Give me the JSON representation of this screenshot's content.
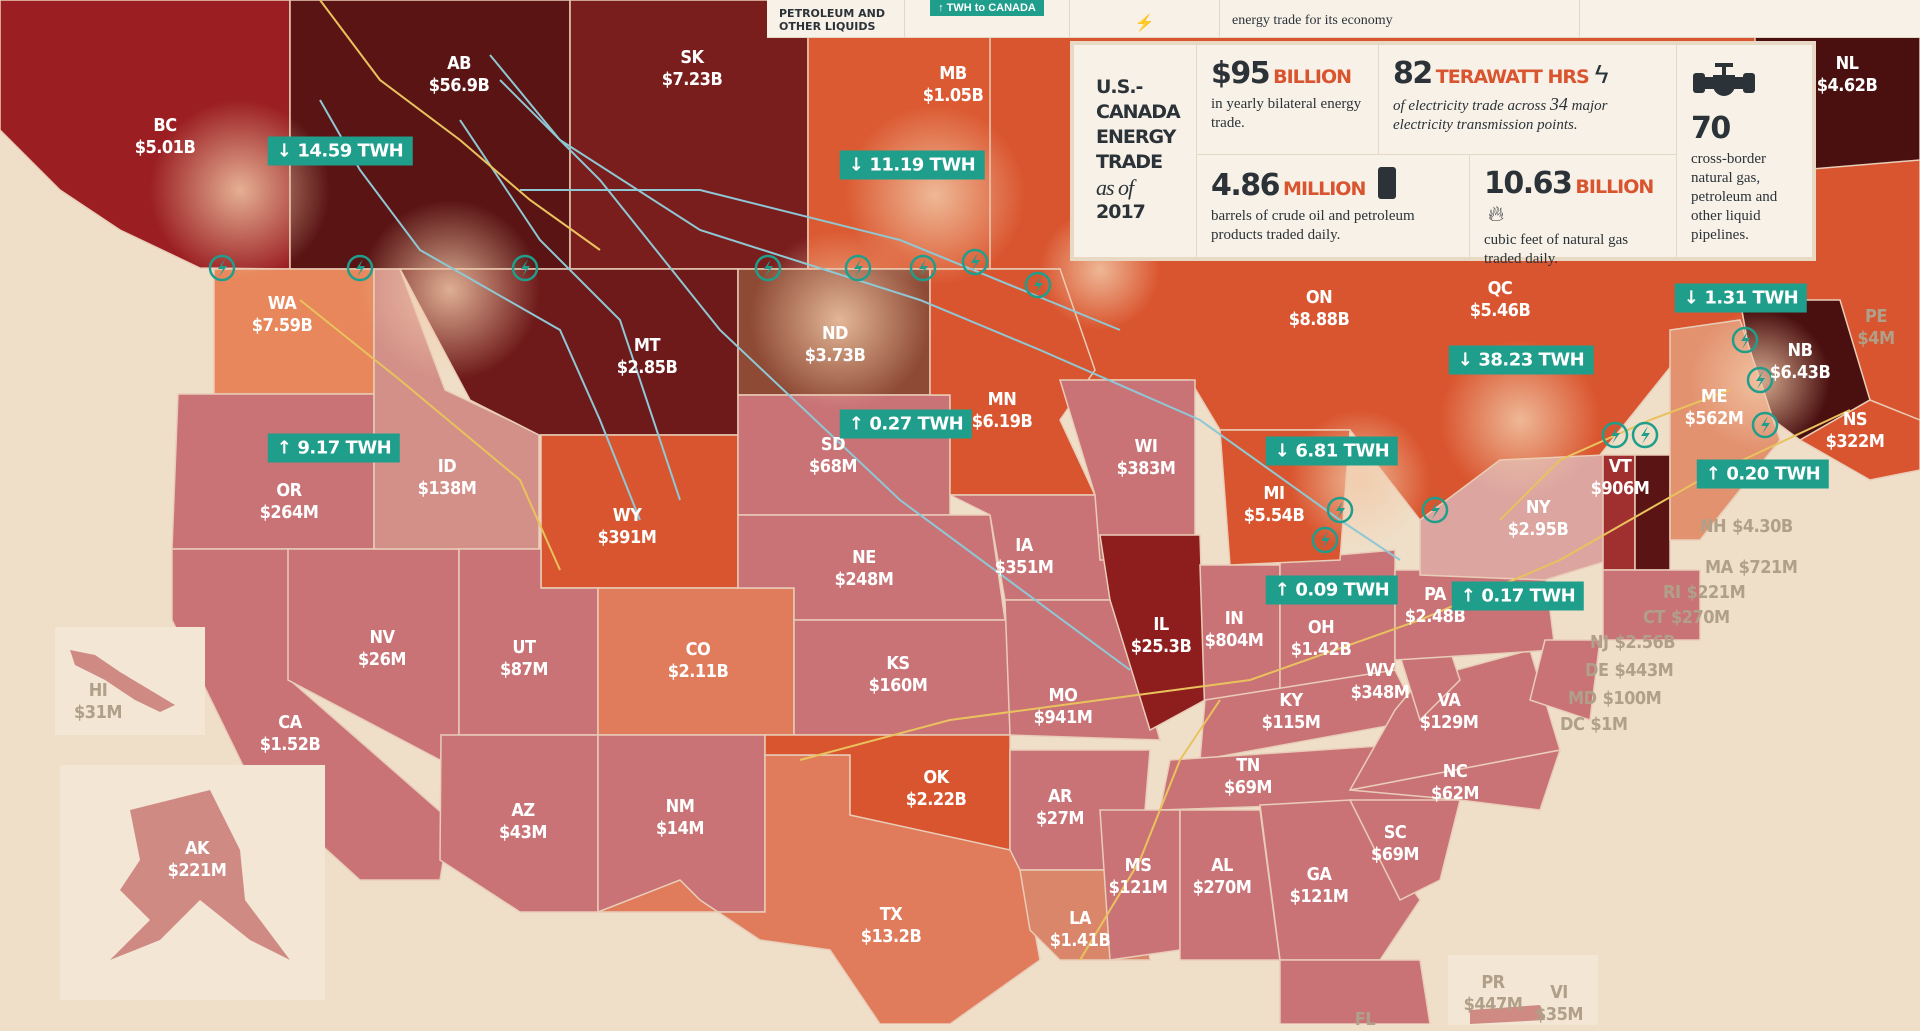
{
  "top_legend": {
    "liquids_label": "PETROLEUM AND OTHER LIQUIDS",
    "twh_badge": "↑ TWH to CANADA",
    "economy_text": "energy trade for its economy"
  },
  "stats": {
    "title_line1": "U.S.-",
    "title_line2": "CANADA",
    "title_line3": "ENERGY",
    "title_line4": "TRADE",
    "title_asof": "as of",
    "title_year": "2017",
    "trade_value": "$95",
    "trade_unit": "BILLION",
    "trade_desc": "in yearly bilateral energy trade.",
    "elec_value": "82",
    "elec_unit": "TERAWATT HRS",
    "elec_desc_a": "of electricity trade across",
    "elec_desc_num": "34",
    "elec_desc_b": "major electricity transmission points.",
    "oil_value": "4.86",
    "oil_unit": "MILLION",
    "oil_desc": "barrels of crude oil and petroleum products traded daily.",
    "gas_value": "10.63",
    "gas_unit": "BILLION",
    "gas_desc": "cubic feet of natural gas traded daily.",
    "pipe_value": "70",
    "pipe_desc": "cross-border natural gas, petroleum and other liquid pipelines."
  },
  "colors": {
    "teal": "#1f9e8c",
    "accent": "#d9552f",
    "dark_text": "#2b3338",
    "pipeline_gas": "#8fc8d4",
    "pipeline_oil": "#e9c25e"
  },
  "regions": [
    {
      "code": "BC",
      "value": "$5.01B"
    },
    {
      "code": "AB",
      "value": "$56.9B"
    },
    {
      "code": "SK",
      "value": "$7.23B"
    },
    {
      "code": "MB",
      "value": "$1.05B"
    },
    {
      "code": "NL",
      "value": "$4.62B"
    },
    {
      "code": "ON",
      "value": "$8.88B"
    },
    {
      "code": "QC",
      "value": "$5.46B"
    },
    {
      "code": "NB",
      "value": "$6.43B"
    },
    {
      "code": "NS",
      "value": "$322M"
    },
    {
      "code": "PE",
      "value": "$4M"
    },
    {
      "code": "WA",
      "value": "$7.59B"
    },
    {
      "code": "MT",
      "value": "$2.85B"
    },
    {
      "code": "ND",
      "value": "$3.73B"
    },
    {
      "code": "MN",
      "value": "$6.19B"
    },
    {
      "code": "OR",
      "value": "$264M"
    },
    {
      "code": "ID",
      "value": "$138M"
    },
    {
      "code": "WY",
      "value": "$391M"
    },
    {
      "code": "SD",
      "value": "$68M"
    },
    {
      "code": "WI",
      "value": "$383M"
    },
    {
      "code": "MI",
      "value": "$5.54B"
    },
    {
      "code": "NY",
      "value": "$2.95B"
    },
    {
      "code": "VT",
      "value": "$906M"
    },
    {
      "code": "ME",
      "value": "$562M"
    },
    {
      "code": "NE",
      "value": "$248M"
    },
    {
      "code": "IA",
      "value": "$351M"
    },
    {
      "code": "IL",
      "value": "$25.3B"
    },
    {
      "code": "IN",
      "value": "$804M"
    },
    {
      "code": "OH",
      "value": "$1.42B"
    },
    {
      "code": "PA",
      "value": "$2.48B"
    },
    {
      "code": "NV",
      "value": "$26M"
    },
    {
      "code": "UT",
      "value": "$87M"
    },
    {
      "code": "CO",
      "value": "$2.11B"
    },
    {
      "code": "KS",
      "value": "$160M"
    },
    {
      "code": "MO",
      "value": "$941M"
    },
    {
      "code": "KY",
      "value": "$115M"
    },
    {
      "code": "WV",
      "value": "$348M"
    },
    {
      "code": "VA",
      "value": "$129M"
    },
    {
      "code": "CA",
      "value": "$1.52B"
    },
    {
      "code": "HI",
      "value": "$31M"
    },
    {
      "code": "AZ",
      "value": "$43M"
    },
    {
      "code": "NM",
      "value": "$14M"
    },
    {
      "code": "OK",
      "value": "$2.22B"
    },
    {
      "code": "AR",
      "value": "$27M"
    },
    {
      "code": "TN",
      "value": "$69M"
    },
    {
      "code": "NC",
      "value": "$62M"
    },
    {
      "code": "SC",
      "value": "$69M"
    },
    {
      "code": "AL",
      "value": "$270M"
    },
    {
      "code": "GA",
      "value": "$121M"
    },
    {
      "code": "MS",
      "value": "$121M"
    },
    {
      "code": "LA",
      "value": "$1.41B"
    },
    {
      "code": "TX",
      "value": "$13.2B"
    },
    {
      "code": "AK",
      "value": "$221M"
    },
    {
      "code": "PR",
      "value": "$447M"
    },
    {
      "code": "VI",
      "value": "$35M"
    },
    {
      "code": "FL",
      "value": ""
    },
    {
      "code": "NH",
      "value": "$4.30B"
    },
    {
      "code": "MA",
      "value": "$721M"
    },
    {
      "code": "RI",
      "value": "$221M"
    },
    {
      "code": "CT",
      "value": "$270M"
    },
    {
      "code": "NJ",
      "value": "$2.56B"
    },
    {
      "code": "DE",
      "value": "$443M"
    },
    {
      "code": "MD",
      "value": "$100M"
    },
    {
      "code": "DC",
      "value": "$1M"
    }
  ],
  "electricity_flows": [
    {
      "direction": "down",
      "arrow": "↓",
      "value": "14.59 TWH"
    },
    {
      "direction": "down",
      "arrow": "↓",
      "value": "11.19 TWH"
    },
    {
      "direction": "up",
      "arrow": "↑",
      "value": "9.17 TWH"
    },
    {
      "direction": "up",
      "arrow": "↑",
      "value": "0.27 TWH"
    },
    {
      "direction": "down",
      "arrow": "↓",
      "value": "6.81 TWH"
    },
    {
      "direction": "up",
      "arrow": "↑",
      "value": "0.09 TWH"
    },
    {
      "direction": "up",
      "arrow": "↑",
      "value": "0.17 TWH"
    },
    {
      "direction": "down",
      "arrow": "↓",
      "value": "38.23 TWH"
    },
    {
      "direction": "down",
      "arrow": "↓",
      "value": "1.31 TWH"
    },
    {
      "direction": "up",
      "arrow": "↑",
      "value": "0.20 TWH"
    }
  ]
}
